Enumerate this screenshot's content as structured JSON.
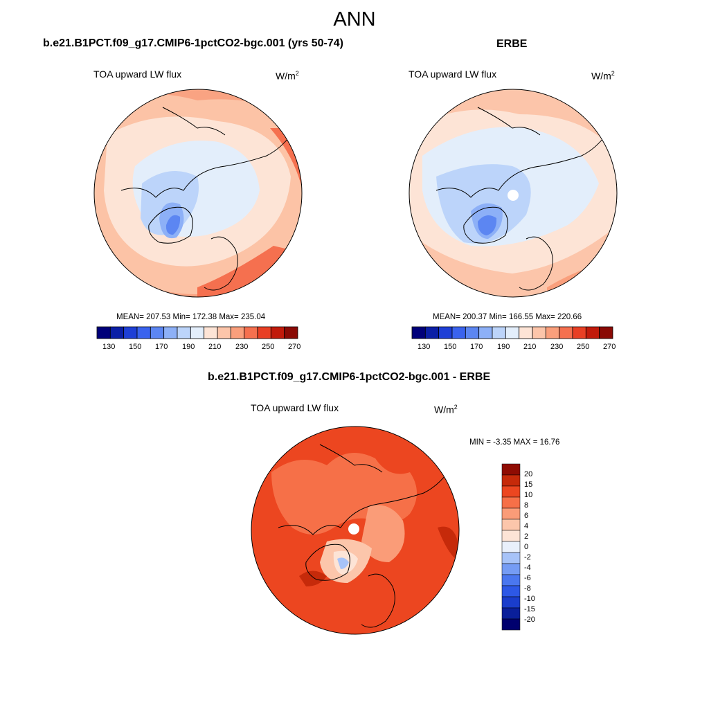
{
  "title": "ANN",
  "colors": {
    "seq": [
      "#00007a",
      "#0b1fa6",
      "#1e3fd6",
      "#3a63ee",
      "#5c86f2",
      "#8db0f7",
      "#bcd4fa",
      "#e3eefb",
      "#fde4d6",
      "#fcc5aa",
      "#fa9f7c",
      "#f5704f",
      "#e83f24",
      "#c11a0b",
      "#8a0a05"
    ],
    "diff": [
      "#00006e",
      "#0a1f9a",
      "#1a3dcc",
      "#2d58e6",
      "#4a77ef",
      "#759cf4",
      "#a7c3f8",
      "#e9f0fb",
      "#fde4d6",
      "#fcc6ab",
      "#fa9c78",
      "#f67048",
      "#ec4620",
      "#c62a0a",
      "#8f0c03"
    ],
    "land": "#000000"
  },
  "panels": [
    {
      "title": "b.e21.B1PCT.f09_g17.CMIP6-1pctCO2-bgc.001 (yrs 50-74)",
      "variable": "TOA upward LW flux",
      "units_base": "W/m",
      "units_exp": "2",
      "stats": "MEAN= 207.53  Min= 172.38  Max= 235.04",
      "colorbar_ticks": [
        "130",
        "150",
        "170",
        "190",
        "210",
        "230",
        "250",
        "270"
      ]
    },
    {
      "title": "ERBE",
      "variable": "TOA upward LW flux",
      "units_base": "W/m",
      "units_exp": "2",
      "stats": "MEAN= 200.37  Min= 166.55  Max= 220.66",
      "colorbar_ticks": [
        "130",
        "150",
        "170",
        "190",
        "210",
        "230",
        "250",
        "270"
      ]
    },
    {
      "title": "b.e21.B1PCT.f09_g17.CMIP6-1pctCO2-bgc.001 - ERBE",
      "variable": "TOA upward LW flux",
      "units_base": "W/m",
      "units_exp": "2",
      "stats": "MIN =  -3.35 MAX =  16.76",
      "colorbar_ticks": [
        "20",
        "15",
        "10",
        "8",
        "6",
        "4",
        "2",
        "0",
        "-2",
        "-4",
        "-6",
        "-8",
        "-10",
        "-15",
        "-20"
      ]
    }
  ]
}
